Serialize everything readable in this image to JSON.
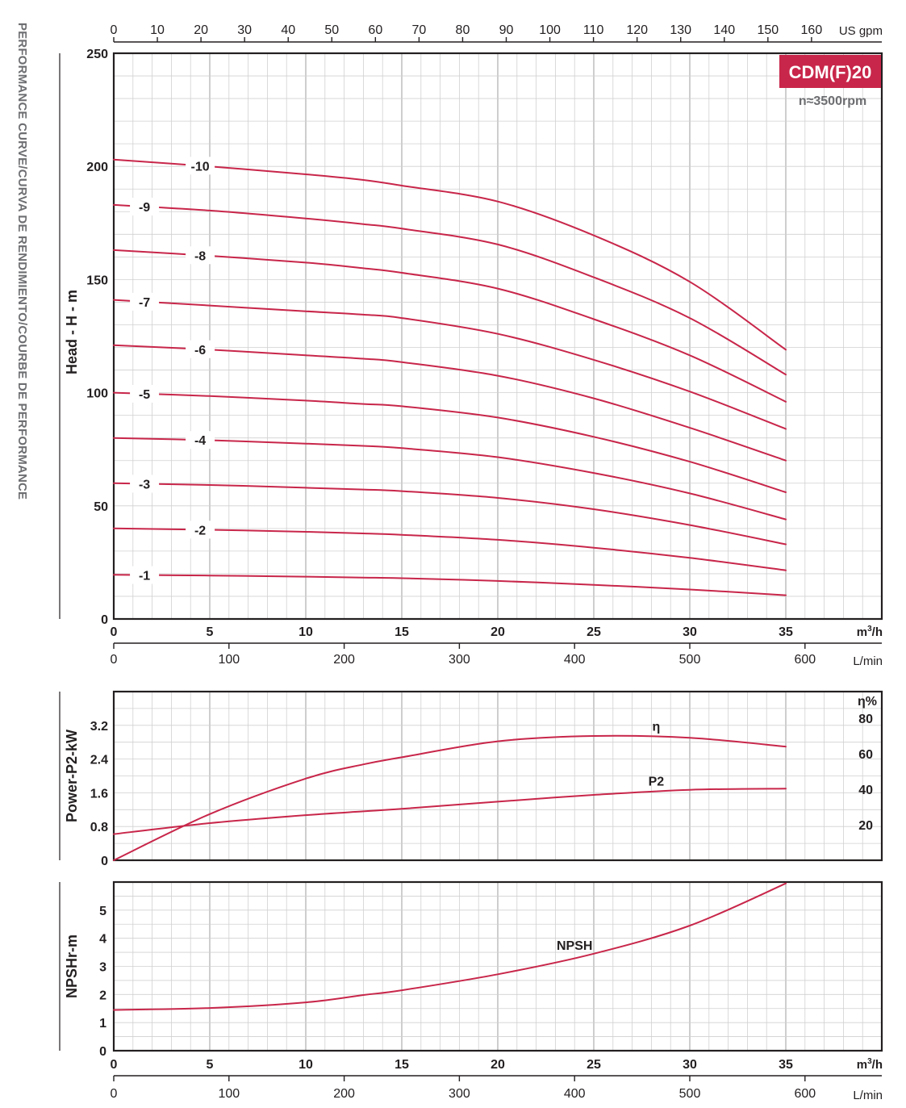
{
  "side_title": "PERFORMANCE CURVE/CURVA DE RENDIMIENTO/COURBE DE PERFORMANCE",
  "model_badge": "CDM(F)20",
  "speed_label": "n≈3500rpm",
  "axes": {
    "usgpm_ticks": [
      "0",
      "10",
      "20",
      "30",
      "40",
      "50",
      "60",
      "70",
      "80",
      "90",
      "100",
      "110",
      "120",
      "130",
      "140",
      "150",
      "160"
    ],
    "usgpm_unit": "US gpm",
    "m3h_ticks": [
      "0",
      "5",
      "10",
      "15",
      "20",
      "25",
      "30",
      "35"
    ],
    "m3h_unit_main": "m",
    "m3h_unit_sup": "3",
    "m3h_unit_tail": "/h",
    "lmin_ticks": [
      "0",
      "100",
      "200",
      "300",
      "400",
      "500",
      "600"
    ],
    "lmin_unit": "L/min"
  },
  "chart_data": [
    {
      "type": "line",
      "title": "",
      "xlabel": "m³/h",
      "ylabel": "Head - H - m",
      "xlim": [
        0,
        40
      ],
      "ylim": [
        0,
        250
      ],
      "yticks": [
        "0",
        "50",
        "100",
        "150",
        "200",
        "250"
      ],
      "x": [
        0,
        5,
        10,
        13,
        15,
        20,
        25,
        30,
        35
      ],
      "series": [
        {
          "name": "-1",
          "label_x": 1.6,
          "values": [
            19.5,
            19.2,
            18.7,
            18.3,
            18.0,
            16.8,
            15.1,
            13.0,
            10.5
          ]
        },
        {
          "name": "-2",
          "label_x": 4.5,
          "values": [
            40.0,
            39.4,
            38.5,
            37.8,
            37.2,
            35.0,
            31.5,
            27.0,
            21.5
          ]
        },
        {
          "name": "-3",
          "label_x": 1.6,
          "values": [
            60.0,
            59.2,
            58.0,
            57.2,
            56.5,
            53.5,
            48.5,
            41.5,
            33.0
          ]
        },
        {
          "name": "-4",
          "label_x": 4.5,
          "values": [
            80.0,
            79.0,
            77.5,
            76.5,
            75.5,
            71.5,
            64.5,
            55.5,
            44.0
          ]
        },
        {
          "name": "-5",
          "label_x": 1.6,
          "values": [
            100.0,
            98.5,
            96.5,
            95.0,
            94.0,
            89.0,
            80.5,
            69.5,
            56.0
          ]
        },
        {
          "name": "-6",
          "label_x": 4.5,
          "values": [
            121.0,
            119.0,
            116.5,
            115.0,
            113.5,
            107.5,
            97.5,
            84.5,
            70.0
          ]
        },
        {
          "name": "-7",
          "label_x": 1.6,
          "values": [
            141.0,
            138.5,
            136.0,
            134.5,
            133.0,
            126.0,
            114.5,
            100.5,
            84.0
          ]
        },
        {
          "name": "-8",
          "label_x": 4.5,
          "values": [
            163.0,
            160.5,
            157.5,
            155.0,
            153.0,
            146.0,
            132.5,
            116.5,
            96.0
          ]
        },
        {
          "name": "-9",
          "label_x": 1.6,
          "values": [
            183.0,
            180.5,
            177.0,
            174.5,
            172.5,
            165.5,
            151.0,
            133.0,
            108.0
          ]
        },
        {
          "name": "-10",
          "label_x": 4.5,
          "values": [
            203.0,
            200.0,
            196.5,
            194.0,
            191.5,
            184.5,
            169.5,
            149.0,
            119.0
          ]
        }
      ]
    },
    {
      "type": "line",
      "title": "",
      "xlabel": "m³/h",
      "ylabel": "Power-P2-kW",
      "y2label": "η%",
      "xlim": [
        0,
        40
      ],
      "ylim": [
        0,
        4.0
      ],
      "y2lim": [
        0,
        95
      ],
      "yticks": [
        "0",
        "0.8",
        "1.6",
        "2.4",
        "3.2"
      ],
      "y2ticks": [
        "20",
        "40",
        "60",
        "80"
      ],
      "x": [
        0,
        5,
        10,
        13,
        15,
        20,
        25,
        30,
        35
      ],
      "series": [
        {
          "name": "η",
          "axis": "right",
          "label_x": 28,
          "values": [
            0,
            26,
            46,
            54,
            58,
            67,
            70,
            69,
            64
          ]
        },
        {
          "name": "P2",
          "axis": "left",
          "label_x": 28,
          "values": [
            0.62,
            0.88,
            1.07,
            1.16,
            1.22,
            1.39,
            1.55,
            1.67,
            1.7
          ]
        }
      ]
    },
    {
      "type": "line",
      "title": "",
      "xlabel": "m³/h",
      "ylabel": "NPSHr-m",
      "xlim": [
        0,
        40
      ],
      "ylim": [
        0,
        6
      ],
      "yticks": [
        "0",
        "1",
        "2",
        "3",
        "4",
        "5"
      ],
      "x": [
        0,
        5,
        10,
        13,
        15,
        20,
        25,
        30,
        35
      ],
      "series": [
        {
          "name": "NPSH",
          "label_x": 24,
          "values": [
            1.45,
            1.52,
            1.72,
            1.98,
            2.15,
            2.72,
            3.45,
            4.45,
            5.95
          ]
        }
      ]
    }
  ]
}
